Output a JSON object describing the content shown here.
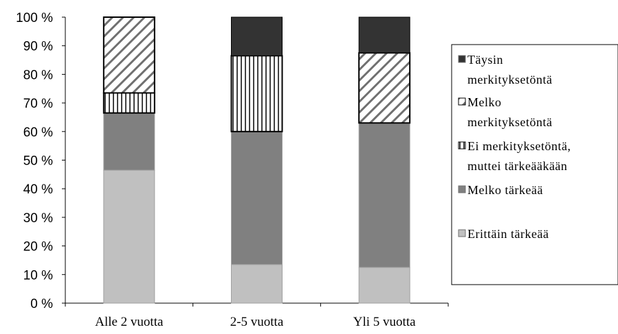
{
  "chart_data": {
    "type": "bar",
    "stacked": true,
    "percent": true,
    "categories": [
      "Alle 2 vuotta",
      "2-5 vuotta",
      "Yli 5 vuotta"
    ],
    "y_ticks": [
      "0 %",
      "10 %",
      "20 %",
      "30 %",
      "40 %",
      "50 %",
      "60 %",
      "70 %",
      "80 %",
      "90 %",
      "100 %"
    ],
    "ylim": [
      0,
      100
    ],
    "grid": false,
    "legend_position": "right",
    "series": [
      {
        "name": "Erittäin tärkeää",
        "values": [
          46.5,
          13.5,
          12.5
        ],
        "color": "#c0c0c0",
        "pattern": "solid"
      },
      {
        "name": "Melko tärkeää",
        "values": [
          20,
          46.5,
          50.5
        ],
        "color": "#808080",
        "pattern": "solid"
      },
      {
        "name": "Ei merkityksetöntä, muttei tärkeääkään",
        "values": [
          7,
          26.5,
          0
        ],
        "color": "#ffffff",
        "pattern": "vertical-lines"
      },
      {
        "name": "Melko merkityksetöntä",
        "values": [
          26.5,
          0,
          24.5
        ],
        "color": "#ffffff",
        "pattern": "diagonal-lines"
      },
      {
        "name": "Täysin merkityksetöntä",
        "values": [
          0,
          13.5,
          12.5
        ],
        "color": "#333333",
        "pattern": "solid"
      }
    ],
    "legend": [
      {
        "lines": [
          "Täysin",
          "merkityksetöntä"
        ],
        "series": 4
      },
      {
        "lines": [
          "Melko",
          "merkityksetöntä"
        ],
        "series": 3
      },
      {
        "lines": [
          "Ei merkityksetöntä,",
          "muttei tärkeääkään"
        ],
        "series": 2
      },
      {
        "lines": [
          "Melko tärkeää"
        ],
        "series": 1
      },
      {
        "lines": [
          "Erittäin tärkeää"
        ],
        "series": 0
      }
    ]
  }
}
